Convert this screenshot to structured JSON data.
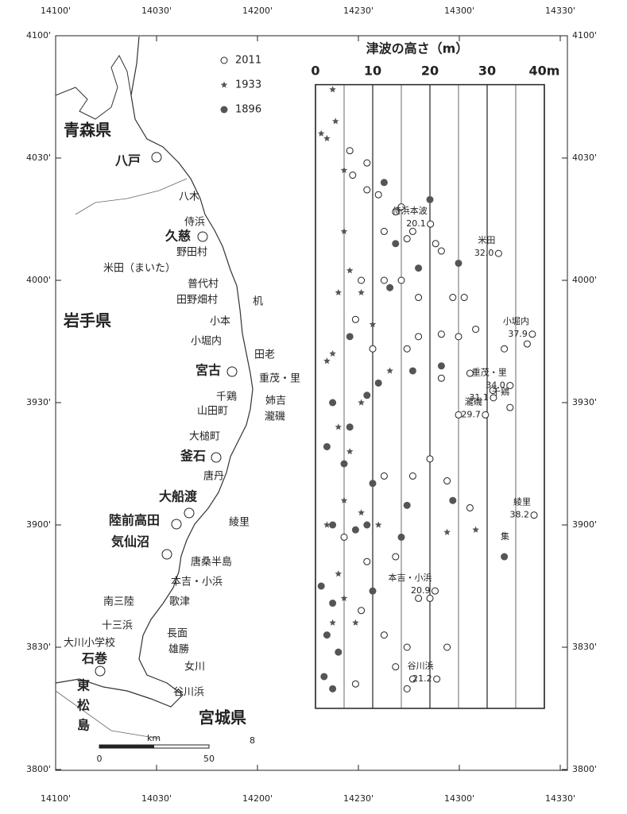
{
  "map": {
    "lon_ticks": [
      {
        "value": 141.0,
        "label": "14100'"
      },
      {
        "value": 141.5,
        "label": "14030'"
      },
      {
        "value": 142.0,
        "label": "14200'"
      },
      {
        "value": 142.5,
        "label": "14230'"
      },
      {
        "value": 143.0,
        "label": "14300'"
      },
      {
        "value": 143.5,
        "label": "14330'"
      }
    ],
    "lat_ticks": [
      {
        "value": 41.0,
        "label": "4100'"
      },
      {
        "value": 40.5,
        "label": "4030'"
      },
      {
        "value": 40.0,
        "label": "4000'"
      },
      {
        "value": 39.5,
        "label": "3930'"
      },
      {
        "value": 39.0,
        "label": "3900'"
      },
      {
        "value": 38.5,
        "label": "3830'"
      },
      {
        "value": 38.0,
        "label": "3800'"
      }
    ],
    "labels": [
      "青森県",
      "八戸",
      "八木",
      "侍浜",
      "久慈",
      "野田村",
      "米田（まいた）",
      "普代村",
      "田野畑村",
      "机",
      "岩手県",
      "小本",
      "小堀内",
      "田老",
      "宮古",
      "重茂・里",
      "千鶏",
      "姉吉",
      "山田町",
      "瀧磯",
      "大槌町",
      "釜石",
      "唐丹",
      "大船渡",
      "陸前高田",
      "綾里",
      "気仙沼",
      "唐桑半島",
      "本吉・小浜",
      "南三陸",
      "歌津",
      "十三浜",
      "長面",
      "大川小学校",
      "雄勝",
      "石巻",
      "女川",
      "東",
      "谷川浜",
      "松",
      "宮城県",
      "島",
      "8"
    ],
    "scale_bar": {
      "unit": "km",
      "ticks": [
        0,
        50
      ]
    }
  },
  "chart_data": {
    "type": "scatter",
    "title": "津波の高さ（m）",
    "xlim": [
      0,
      40
    ],
    "xticks": [
      0,
      10,
      20,
      30,
      {
        "value": 40,
        "label": "40m"
      }
    ],
    "xminor_ticks": [
      5,
      15,
      25,
      35
    ],
    "ylim": [
      38.25,
      40.8
    ],
    "series": [
      {
        "name": "2011",
        "marker": "open-circle",
        "color": "#ffffff",
        "values": [
          6,
          6.5,
          9,
          9,
          11,
          14,
          15,
          17,
          12,
          16,
          21,
          22,
          8,
          12,
          15,
          18,
          24,
          26,
          7,
          18,
          22,
          25,
          28,
          33,
          37,
          10,
          16,
          22,
          27,
          31,
          34,
          25,
          12,
          17,
          20,
          23,
          27,
          5,
          9,
          14,
          20,
          18,
          8,
          12,
          16,
          23,
          14,
          16,
          7,
          17
        ],
        "lat": [
          40.53,
          40.43,
          40.48,
          40.37,
          40.35,
          40.28,
          40.3,
          40.2,
          40.2,
          40.17,
          40.15,
          40.12,
          40.0,
          40.0,
          40.0,
          39.93,
          39.93,
          39.93,
          39.84,
          39.77,
          39.78,
          39.77,
          39.8,
          39.72,
          39.74,
          39.72,
          39.72,
          39.6,
          39.62,
          39.55,
          39.48,
          39.45,
          39.2,
          39.2,
          39.27,
          39.18,
          39.07,
          38.95,
          38.85,
          38.87,
          38.7,
          38.7,
          38.65,
          38.55,
          38.5,
          38.5,
          38.42,
          38.33,
          38.35,
          38.37
        ]
      },
      {
        "name": "1933",
        "marker": "star",
        "color": "#555555",
        "values": [
          1,
          2,
          3,
          3.5,
          5,
          5,
          6,
          4,
          8,
          10,
          2,
          3,
          13,
          8,
          4,
          6,
          5,
          8,
          2,
          11,
          23,
          28,
          4,
          5,
          3,
          7
        ],
        "lat": [
          40.6,
          40.58,
          40.78,
          40.65,
          40.45,
          40.2,
          40.04,
          39.95,
          39.95,
          39.82,
          39.67,
          39.7,
          39.63,
          39.5,
          39.4,
          39.3,
          39.1,
          39.05,
          39.0,
          39.0,
          38.97,
          38.98,
          38.8,
          38.7,
          38.6,
          38.6
        ]
      },
      {
        "name": "1896",
        "marker": "filled-circle",
        "color": "#555555",
        "values": [
          12,
          20,
          14,
          18,
          25,
          13,
          6,
          11,
          17,
          22,
          9,
          3,
          6,
          2,
          5,
          10,
          16,
          24,
          3,
          7,
          9,
          15,
          33,
          1,
          3,
          10,
          2,
          4,
          1.5,
          3
        ],
        "lat": [
          40.4,
          40.33,
          40.15,
          40.05,
          40.07,
          39.97,
          39.77,
          39.58,
          39.63,
          39.65,
          39.53,
          39.5,
          39.4,
          39.32,
          39.25,
          39.17,
          39.08,
          39.1,
          39.0,
          38.98,
          39.0,
          38.95,
          38.87,
          38.75,
          38.68,
          38.73,
          38.55,
          38.48,
          38.38,
          38.33
        ]
      }
    ],
    "annotations": [
      {
        "text": "侍浜本波",
        "value": 20.1,
        "lat": 40.23
      },
      {
        "text": "米田",
        "value": 32,
        "value_label": "32.0",
        "lat": 40.11
      },
      {
        "text": "小堀内",
        "value": 37.9,
        "lat": 39.78
      },
      {
        "text": "重茂・里",
        "value": 34,
        "value_label": "34.0",
        "lat": 39.57
      },
      {
        "value": 31.1,
        "lat": 39.52
      },
      {
        "text": "千鶏",
        "lat": 39.49
      },
      {
        "text": "瀧磯",
        "value": 29.7,
        "lat": 39.45
      },
      {
        "text": "綾里",
        "value": 38.2,
        "lat": 39.04
      },
      {
        "text": "集",
        "lat": 38.9
      },
      {
        "text": "本吉・小浜",
        "value": 20.9,
        "lat": 38.73
      },
      {
        "text": "谷川浜",
        "value": 21.2,
        "lat": 38.37
      }
    ]
  }
}
